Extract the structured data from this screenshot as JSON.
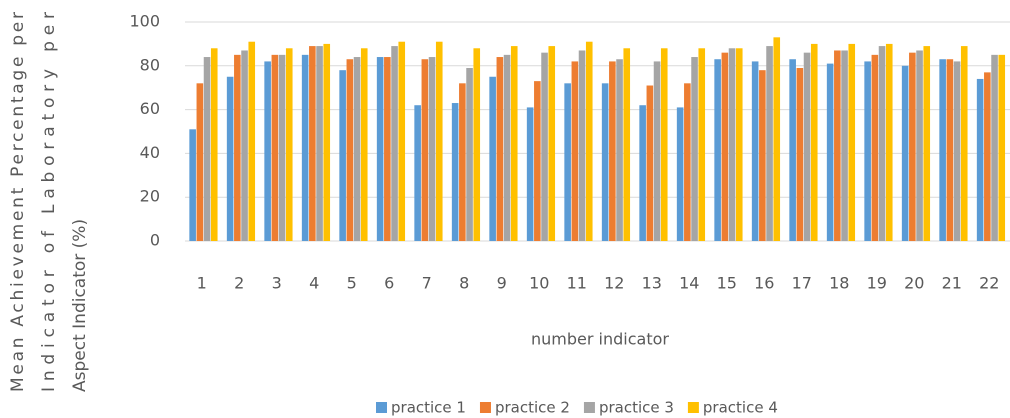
{
  "chart_data": {
    "type": "bar",
    "y_label_lines": [
      "Mean Achievement Percentage per",
      "Indicator of Laboratory per",
      "Aspect Indicator (%)"
    ],
    "x_label": "number indicator",
    "categories": [
      "1",
      "2",
      "3",
      "4",
      "5",
      "6",
      "7",
      "8",
      "9",
      "10",
      "11",
      "12",
      "13",
      "14",
      "15",
      "16",
      "17",
      "18",
      "19",
      "20",
      "21",
      "22"
    ],
    "series": [
      {
        "name": "practice 1",
        "color": "#5b9bd5",
        "values": [
          51,
          75,
          82,
          85,
          78,
          84,
          62,
          63,
          75,
          61,
          72,
          72,
          62,
          61,
          83,
          82,
          83,
          81,
          82,
          80,
          83,
          74
        ]
      },
      {
        "name": "practice 2",
        "color": "#ed7d31",
        "values": [
          72,
          85,
          85,
          89,
          83,
          84,
          83,
          72,
          84,
          73,
          82,
          82,
          71,
          72,
          86,
          78,
          79,
          87,
          85,
          86,
          83,
          77
        ]
      },
      {
        "name": "practice 3",
        "color": "#a5a5a5",
        "values": [
          84,
          87,
          85,
          89,
          84,
          89,
          84,
          79,
          85,
          86,
          87,
          83,
          82,
          84,
          88,
          89,
          86,
          87,
          89,
          87,
          82,
          85
        ]
      },
      {
        "name": "practice 4",
        "color": "#ffc000",
        "values": [
          88,
          91,
          88,
          90,
          88,
          91,
          91,
          88,
          89,
          89,
          91,
          88,
          88,
          88,
          88,
          93,
          90,
          90,
          90,
          89,
          89,
          85
        ]
      }
    ],
    "ylim": [
      0,
      100
    ],
    "yticks": [
      0,
      20,
      40,
      60,
      80,
      100
    ],
    "grid": true,
    "legend": "bottom"
  }
}
